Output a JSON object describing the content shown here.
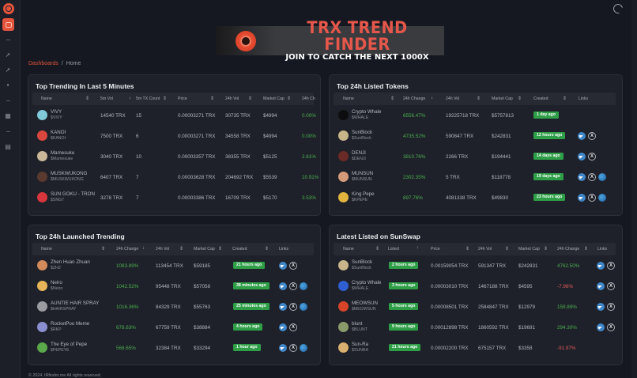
{
  "sidebar": {
    "logo": "trx-trend-finder-logo",
    "items": [
      {
        "icon": "home-icon",
        "active": true
      },
      {
        "icon": "rocket-icon"
      },
      {
        "icon": "rocket-icon"
      },
      {
        "icon": "box-icon"
      },
      {
        "icon": "grid-icon"
      },
      {
        "icon": "table-icon"
      }
    ]
  },
  "topbar": {
    "theme_toggle": "moon-icon"
  },
  "banner": {
    "title": "TRX TREND FINDER",
    "subtitle": "JOIN TO CATCH THE NEXT 1000X"
  },
  "breadcrumb": {
    "parent": "Dashboards",
    "separator": "/",
    "current": "Home"
  },
  "trending5m": {
    "title": "Top Trending In Last 5 Minutes",
    "columns": [
      "Name",
      "5m Vol",
      "5m TX Count",
      "Price",
      "24h Vol",
      "Market Cap",
      "24h Ch"
    ],
    "rows": [
      {
        "name": "VIVY",
        "symbol": "$VIVY",
        "vol5m": "14540 TRX",
        "tx": "15",
        "price": "0.00003271 TRX",
        "vol24h": "30735 TRX",
        "mcap": "$4994",
        "change": "0.00%",
        "avatar": "#7fc9d8"
      },
      {
        "name": "KANOI",
        "symbol": "$KANOI",
        "vol5m": "7500 TRX",
        "tx": "6",
        "price": "0.00003271 TRX",
        "vol24h": "34558 TRX",
        "mcap": "$4994",
        "change": "0.00%",
        "avatar": "#d9473f"
      },
      {
        "name": "Mamesuke",
        "symbol": "$Mamesuke",
        "vol5m": "3040 TRX",
        "tx": "10",
        "price": "0.00003357 TRX",
        "vol24h": "38355 TRX",
        "mcap": "$5125",
        "change": "2.61%",
        "avatar": "#c9b89a"
      },
      {
        "name": "MUSKWUKONG",
        "symbol": "$MUSKWUKONG",
        "vol5m": "6407 TRX",
        "tx": "7",
        "price": "0.00003628 TRX",
        "vol24h": "204692 TRX",
        "mcap": "$5539",
        "change": "10.91%",
        "avatar": "#5a3a2e"
      },
      {
        "name": "SUN GOKU - TRON",
        "symbol": "$SNG7",
        "vol5m": "3278 TRX",
        "tx": "7",
        "price": "0.00003386 TRX",
        "vol24h": "16709 TRX",
        "mcap": "$5170",
        "change": "3.53%",
        "avatar": "#d8363c"
      }
    ]
  },
  "listed24h": {
    "title": "Top 24h Listed Tokens",
    "columns": [
      "Name",
      "24h Change",
      "24h Vol",
      "Market Cap",
      "Created",
      "Links"
    ],
    "rows": [
      {
        "name": "Crypto Whale",
        "symbol": "$WHALE",
        "change": "6556.47%",
        "vol24h": "19225718 TRX",
        "mcap": "$5757813",
        "created": "1 day ago",
        "links": [],
        "avatar": "#0d0d0f"
      },
      {
        "name": "SunBlock",
        "symbol": "$SunBlock",
        "change": "4735.52%",
        "vol24h": "590847 TRX",
        "mcap": "$242831",
        "created": "12 hours ago",
        "links": [
          "telegram",
          "x"
        ],
        "avatar": "#c8b58a"
      },
      {
        "name": "DENJI",
        "symbol": "$DENJI",
        "change": "3810.76%",
        "vol24h": "2266 TRX",
        "mcap": "$194441",
        "created": "14 days ago",
        "links": [
          "telegram",
          "x"
        ],
        "avatar": "#6a2a26"
      },
      {
        "name": "MUNSUN",
        "symbol": "$MUNSUN",
        "change": "2302.35%",
        "vol24h": "5 TRX",
        "mcap": "$118778",
        "created": "19 days ago",
        "links": [
          "telegram",
          "x",
          "website"
        ],
        "avatar": "#d49a7a"
      },
      {
        "name": "King Pepe",
        "symbol": "$KPEPE",
        "change": "897.76%",
        "vol24h": "4081338 TRX",
        "mcap": "$49830",
        "created": "23 hours ago",
        "links": [
          "telegram",
          "x",
          "website"
        ],
        "avatar": "#e3b53e"
      }
    ]
  },
  "launched24h": {
    "title": "Top 24h Launched Trending",
    "columns": [
      "Name",
      "24h Change",
      "24h Vol",
      "Market Cap",
      "Created",
      "Links"
    ],
    "rows": [
      {
        "name": "Zhen Huan Zhuan",
        "symbol": "$ZHZ",
        "change": "1083.89%",
        "vol24h": "113454 TRX",
        "mcap": "$59185",
        "created": "21 hours ago",
        "links": [
          "telegram",
          "x"
        ],
        "avatar": "#d28a5a"
      },
      {
        "name": "Neiro",
        "symbol": "$Neiro",
        "change": "1042.52%",
        "vol24h": "95448 TRX",
        "mcap": "$57058",
        "created": "38 minutes ago",
        "links": [
          "telegram",
          "x",
          "website"
        ],
        "avatar": "#e8b45a"
      },
      {
        "name": "AUNTIE HAIR SPRAY",
        "symbol": "$HAIRSPRAY",
        "change": "1016.36%",
        "vol24h": "84329 TRX",
        "mcap": "$55763",
        "created": "25 minutes ago",
        "links": [
          "telegram",
          "x",
          "website"
        ],
        "avatar": "#9a9ca2"
      },
      {
        "name": "RocketPoo Meme",
        "symbol": "$RKP",
        "change": "678.63%",
        "vol24h": "67759 TRX",
        "mcap": "$38884",
        "created": "4 hours ago",
        "links": [
          "telegram",
          "x"
        ],
        "avatar": "#8a8fd0"
      },
      {
        "name": "The Eye of Pepe",
        "symbol": "$PEPEYE",
        "change": "566.65%",
        "vol24h": "32384 TRX",
        "mcap": "$33294",
        "created": "1 hour ago",
        "links": [
          "telegram",
          "x",
          "website"
        ],
        "avatar": "#5aa84a"
      }
    ]
  },
  "sunswap": {
    "title": "Latest Listed on SunSwap",
    "columns": [
      "Name",
      "Listed",
      "Price",
      "24h Vol",
      "Market Cap",
      "24h Change",
      "Links"
    ],
    "rows": [
      {
        "name": "SunBlock",
        "symbol": "$SunBlock",
        "listed": "2 hours ago",
        "price": "0.00159054 TRX",
        "vol24h": "591347 TRX",
        "mcap": "$242831",
        "change": "4762.50%",
        "dir": "pos",
        "links": [
          "telegram",
          "x"
        ],
        "avatar": "#c8b58a"
      },
      {
        "name": "Crypto Whale",
        "symbol": "$WHALE",
        "listed": "3 hours ago",
        "price": "0.00003010 TRX",
        "vol24h": "1467188 TRX",
        "mcap": "$4595",
        "change": "-7.98%",
        "dir": "neg",
        "links": [
          "telegram",
          "x"
        ],
        "avatar": "#2f5fd0"
      },
      {
        "name": "MEOWSUN",
        "symbol": "$MEOWSUN",
        "listed": "5 hours ago",
        "price": "0.00008501 TRX",
        "vol24h": "2584847 TRX",
        "mcap": "$12979",
        "change": "159.89%",
        "dir": "pos",
        "links": [
          "telegram",
          "x"
        ],
        "avatar": "#d8442a"
      },
      {
        "name": "blunt",
        "symbol": "$BLUNT",
        "listed": "9 hours ago",
        "price": "0.00012898 TRX",
        "vol24h": "1860592 TRX",
        "mcap": "$19691",
        "change": "294.30%",
        "dir": "pos",
        "links": [
          "telegram",
          "x"
        ],
        "avatar": "#8a9a6a"
      },
      {
        "name": "Sun-Ra",
        "symbol": "$SUNRA",
        "listed": "21 hours ago",
        "price": "0.00002200 TRX",
        "vol24h": "675157 TRX",
        "mcap": "$3358",
        "change": "-91.97%",
        "dir": "neg",
        "links": [],
        "avatar": "#d8b070"
      }
    ]
  },
  "footer": {
    "text": "© 2024. tRfinder.me All rights reserved."
  }
}
